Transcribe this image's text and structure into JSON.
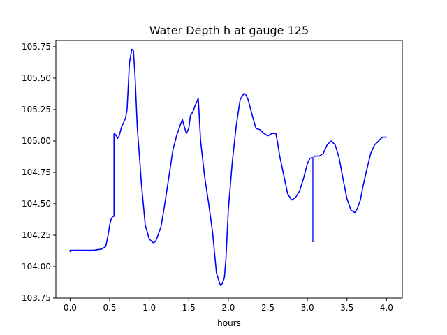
{
  "chart_data": {
    "type": "line",
    "title": "Water Depth h at gauge 125",
    "xlabel": "hours",
    "ylabel": "",
    "xlim": [
      -0.18,
      4.2
    ],
    "ylim": [
      103.75,
      105.8
    ],
    "xticks": [
      0.0,
      0.5,
      1.0,
      1.5,
      2.0,
      2.5,
      3.0,
      3.5,
      4.0
    ],
    "xtick_labels": [
      "0.0",
      "0.5",
      "1.0",
      "1.5",
      "2.0",
      "2.5",
      "3.0",
      "3.5",
      "4.0"
    ],
    "yticks": [
      103.75,
      104.0,
      104.25,
      104.5,
      104.75,
      105.0,
      105.25,
      105.5,
      105.75
    ],
    "ytick_labels": [
      "103.75",
      "104.00",
      "104.25",
      "104.50",
      "104.75",
      "105.00",
      "105.25",
      "105.50",
      "105.75"
    ],
    "grid": false,
    "legend": "none",
    "series": [
      {
        "color": "#0000ff",
        "x": [
          0.0,
          0.0,
          0.1,
          0.2,
          0.3,
          0.4,
          0.45,
          0.48,
          0.5,
          0.52,
          0.54,
          0.55,
          0.555,
          0.555,
          0.575,
          0.6,
          0.62,
          0.65,
          0.7,
          0.72,
          0.75,
          0.78,
          0.8,
          0.82,
          0.85,
          0.88,
          0.9,
          0.95,
          1.0,
          1.05,
          1.08,
          1.1,
          1.15,
          1.2,
          1.25,
          1.3,
          1.35,
          1.4,
          1.42,
          1.45,
          1.47,
          1.5,
          1.52,
          1.55,
          1.58,
          1.6,
          1.62,
          1.65,
          1.7,
          1.75,
          1.8,
          1.85,
          1.9,
          1.92,
          1.95,
          1.97,
          2.0,
          2.05,
          2.1,
          2.15,
          2.2,
          2.22,
          2.25,
          2.3,
          2.35,
          2.4,
          2.45,
          2.5,
          2.55,
          2.6,
          2.62,
          2.65,
          2.7,
          2.75,
          2.8,
          2.85,
          2.9,
          2.95,
          3.0,
          3.03,
          3.06,
          3.06,
          3.08,
          3.08,
          3.09,
          3.1,
          3.15,
          3.2,
          3.25,
          3.3,
          3.35,
          3.4,
          3.45,
          3.5,
          3.55,
          3.6,
          3.63,
          3.67,
          3.7,
          3.75,
          3.8,
          3.85,
          3.9,
          3.93,
          3.95,
          3.97,
          4.0
        ],
        "y": [
          104.12,
          104.13,
          104.13,
          104.13,
          104.13,
          104.14,
          104.16,
          104.25,
          104.33,
          104.38,
          104.4,
          104.4,
          104.4,
          105.06,
          105.05,
          105.02,
          105.04,
          105.11,
          105.18,
          105.25,
          105.62,
          105.73,
          105.72,
          105.53,
          105.1,
          104.85,
          104.67,
          104.33,
          104.22,
          104.19,
          104.2,
          104.23,
          104.32,
          104.51,
          104.72,
          104.93,
          105.05,
          105.14,
          105.17,
          105.1,
          105.06,
          105.1,
          105.2,
          105.23,
          105.28,
          105.31,
          105.34,
          105.0,
          104.72,
          104.51,
          104.28,
          103.95,
          103.85,
          103.86,
          103.91,
          104.06,
          104.45,
          104.83,
          105.12,
          105.33,
          105.38,
          105.37,
          105.33,
          105.21,
          105.1,
          105.09,
          105.06,
          105.04,
          105.06,
          105.06,
          105.0,
          104.88,
          104.73,
          104.58,
          104.53,
          104.55,
          104.6,
          104.7,
          104.82,
          104.86,
          104.87,
          104.2,
          104.2,
          104.87,
          104.88,
          104.88,
          104.88,
          104.9,
          104.97,
          105.0,
          104.97,
          104.87,
          104.7,
          104.54,
          104.45,
          104.43,
          104.46,
          104.53,
          104.63,
          104.77,
          104.9,
          104.97,
          105.0,
          105.02,
          105.03,
          105.03,
          105.03
        ]
      }
    ]
  }
}
